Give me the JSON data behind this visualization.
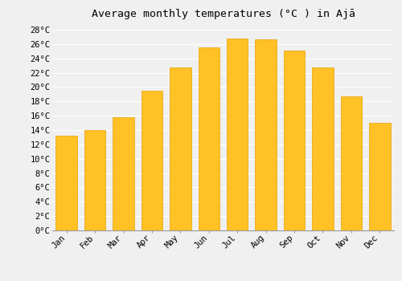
{
  "title": "Average monthly temperatures (°C ) in Ajā",
  "months": [
    "Jan",
    "Feb",
    "Mar",
    "Apr",
    "May",
    "Jun",
    "Jul",
    "Aug",
    "Sep",
    "Oct",
    "Nov",
    "Dec"
  ],
  "values": [
    13.2,
    14.0,
    15.8,
    19.5,
    22.7,
    25.5,
    26.8,
    26.7,
    25.1,
    22.7,
    18.7,
    15.0
  ],
  "bar_color_face": "#FFC125",
  "bar_color_edge": "#E8A000",
  "background_color": "#f0f0f0",
  "plot_bg_color": "#f0f0f0",
  "grid_color": "#ffffff",
  "ytick_step": 2,
  "ymin": 0,
  "ymax": 29,
  "title_fontsize": 9.5,
  "tick_fontsize": 7.5,
  "font_family": "monospace"
}
